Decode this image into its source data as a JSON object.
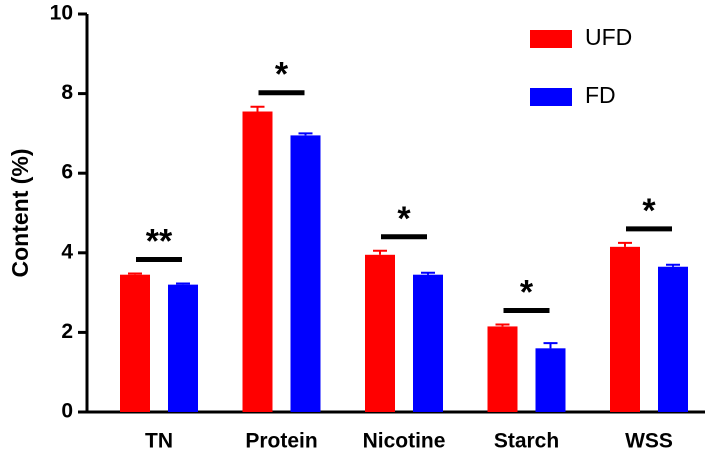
{
  "chart_data": {
    "type": "bar",
    "categories": [
      "TN",
      "Protein",
      "Nicotine",
      "Starch",
      "WSS"
    ],
    "y_label": "Content (%)",
    "series": [
      {
        "name": "UFD",
        "color": "#ff0000",
        "values": [
          3.45,
          7.55,
          3.95,
          2.15,
          4.15
        ],
        "errors": [
          0.03,
          0.12,
          0.1,
          0.05,
          0.1
        ]
      },
      {
        "name": "FD",
        "color": "#0000ff",
        "values": [
          3.2,
          6.95,
          3.45,
          1.6,
          3.65
        ],
        "errors": [
          0.03,
          0.05,
          0.05,
          0.13,
          0.05
        ]
      }
    ],
    "significance": [
      "**",
      "*",
      "*",
      "*",
      "*"
    ],
    "ylim": [
      0,
      10
    ],
    "yticks": [
      0,
      2,
      4,
      6,
      8,
      10
    ],
    "grid": false,
    "legend": "top-right"
  }
}
